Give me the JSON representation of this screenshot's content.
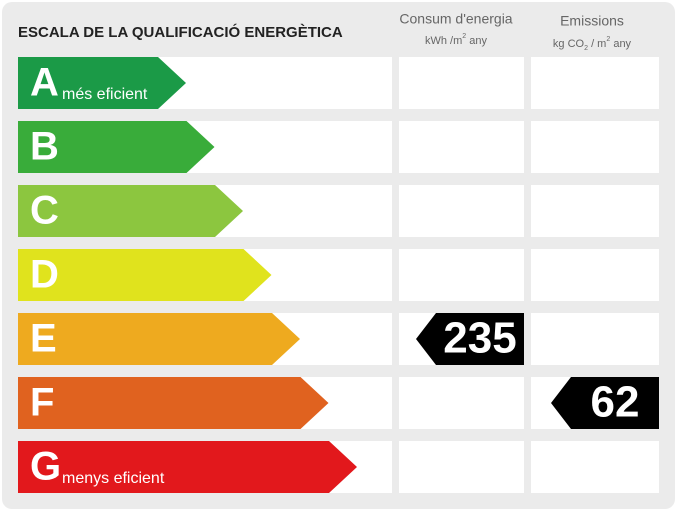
{
  "title": "ESCALA DE LA QUALIFICACIÓ ENERGÈTICA",
  "columns": [
    {
      "label": "Consum d'energia",
      "unit_parts": [
        "kWh /m",
        "2",
        " any"
      ],
      "rating": {
        "class": "E",
        "value": 235
      }
    },
    {
      "label": "Emissions",
      "unit_parts": [
        "kg CO",
        "2",
        " / m",
        "2",
        " any"
      ],
      "rating": {
        "class": "F",
        "value": 62
      }
    }
  ],
  "classes": [
    {
      "letter": "A",
      "label": "més eficient",
      "color": "#1b9a47"
    },
    {
      "letter": "B",
      "color": "#39ac3a"
    },
    {
      "letter": "C",
      "color": "#8cc63f"
    },
    {
      "letter": "D",
      "color": "#e0e31d"
    },
    {
      "letter": "E",
      "color": "#eeaa1f"
    },
    {
      "letter": "F",
      "color": "#e0621f"
    },
    {
      "letter": "G",
      "label": "menys eficient",
      "color": "#e2181c"
    }
  ]
}
